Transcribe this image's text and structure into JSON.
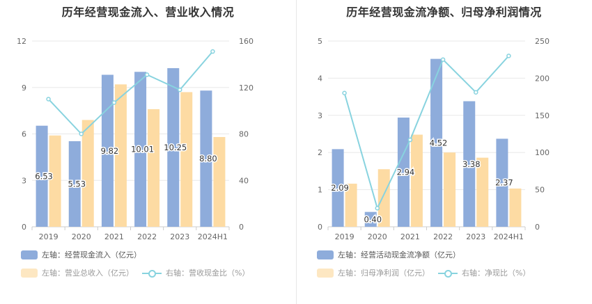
{
  "chart_data": [
    {
      "type": "bar+line",
      "title": "历年经营现金流入、营业收入情况",
      "categories": [
        "2019",
        "2020",
        "2021",
        "2022",
        "2023",
        "2024H1"
      ],
      "left_axis": {
        "min": 0,
        "max": 12,
        "ticks": [
          "0",
          "3",
          "6",
          "9",
          "12"
        ]
      },
      "right_axis": {
        "min": 0,
        "max": 160,
        "ticks": [
          "0",
          "40",
          "80",
          "120",
          "160"
        ]
      },
      "series": [
        {
          "name": "左轴：经营现金流入（亿元）",
          "axis": "left",
          "kind": "bar",
          "color": "#8eacdb",
          "values": [
            6.53,
            5.53,
            9.82,
            10.01,
            10.25,
            8.8
          ],
          "labels": [
            "6.53",
            "5.53",
            "9.82",
            "10.01",
            "10.25",
            "8.80"
          ]
        },
        {
          "name": "左轴：营业总收入（亿元）",
          "axis": "left",
          "kind": "bar",
          "color": "#fddba3",
          "values": [
            5.9,
            6.9,
            9.2,
            7.6,
            8.7,
            5.8
          ]
        },
        {
          "name": "右轴：营收现金比（%）",
          "axis": "right",
          "kind": "line",
          "color": "#88d3df",
          "values": [
            110,
            80,
            107,
            131,
            118,
            151
          ]
        }
      ]
    },
    {
      "type": "bar+line",
      "title": "历年经营现金流净额、归母净利润情况",
      "categories": [
        "2019",
        "2020",
        "2021",
        "2022",
        "2023",
        "2024H1"
      ],
      "left_axis": {
        "min": 0,
        "max": 5,
        "ticks": [
          "0",
          "1",
          "2",
          "3",
          "4",
          "5"
        ]
      },
      "right_axis": {
        "min": 0,
        "max": 250,
        "ticks": [
          "0",
          "50",
          "100",
          "150",
          "200",
          "250"
        ]
      },
      "series": [
        {
          "name": "左轴：经营活动现金流净额（亿元）",
          "axis": "left",
          "kind": "bar",
          "color": "#8eacdb",
          "values": [
            2.09,
            0.4,
            2.94,
            4.52,
            3.38,
            2.37
          ],
          "labels": [
            "2.09",
            "0.40",
            "2.94",
            "4.52",
            "3.38",
            "2.37"
          ]
        },
        {
          "name": "左轴：归母净利润（亿元）",
          "axis": "left",
          "kind": "bar",
          "color": "#fddba3",
          "values": [
            1.16,
            1.55,
            2.48,
            2.0,
            1.86,
            1.03
          ]
        },
        {
          "name": "右轴：净现比（%）",
          "axis": "right",
          "kind": "line",
          "color": "#88d3df",
          "values": [
            180,
            25,
            117,
            225,
            181,
            230
          ]
        }
      ]
    }
  ]
}
